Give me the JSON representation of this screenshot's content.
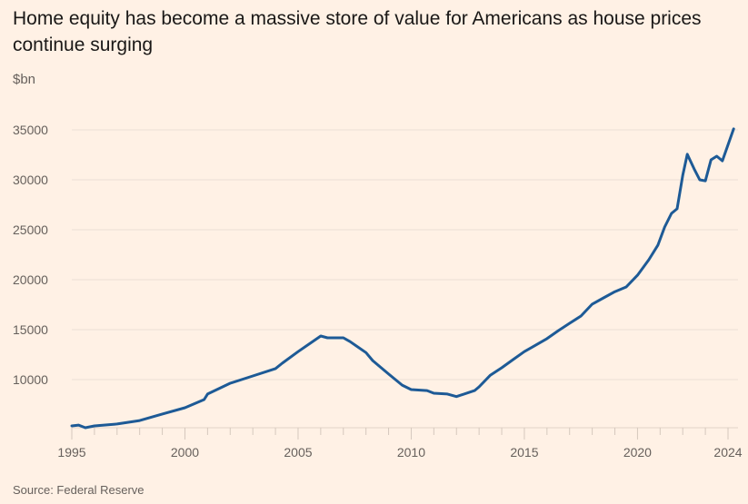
{
  "chart_data": {
    "type": "line",
    "title": "Home equity has become a massive store of value for Americans as house prices continue surging",
    "ylabel": "$bn",
    "xlabel": "",
    "source": "Source: Federal Reserve",
    "xlim": [
      1995,
      2024
    ],
    "ylim": [
      3500,
      36000
    ],
    "x_ticks": [
      1995,
      2000,
      2005,
      2010,
      2015,
      2020,
      2024
    ],
    "y_ticks": [
      10000,
      15000,
      20000,
      25000,
      30000,
      35000
    ],
    "grid": true,
    "line_color": "#1d5a96",
    "series": [
      {
        "name": "Home equity",
        "x": [
          1995.0,
          1995.3,
          1995.6,
          1996,
          1997,
          1998,
          1999,
          2000,
          2000.85,
          2001,
          2002,
          2003,
          2004,
          2004.3,
          2005,
          2006,
          2006.3,
          2007,
          2007.3,
          2008,
          2008.3,
          2009,
          2009.6,
          2010,
          2010.7,
          2011,
          2011.6,
          2012,
          2012.8,
          2013,
          2013.5,
          2014,
          2014.5,
          2015,
          2015.5,
          2016,
          2016.5,
          2017,
          2017.5,
          2018,
          2018.5,
          2019,
          2019.5,
          2020,
          2020.5,
          2020.9,
          2021.2,
          2021.5,
          2021.75,
          2022.0,
          2022.2,
          2022.5,
          2022.75,
          2023.0,
          2023.25,
          2023.5,
          2023.75,
          2024.25
        ],
        "values": [
          5360,
          5450,
          5180,
          5360,
          5550,
          5900,
          6550,
          7180,
          8000,
          8550,
          9640,
          10360,
          11100,
          11640,
          12800,
          14360,
          14180,
          14180,
          13800,
          12700,
          11900,
          10550,
          9450,
          9000,
          8900,
          8640,
          8550,
          8300,
          8900,
          9270,
          10450,
          11180,
          12000,
          12800,
          13450,
          14100,
          14900,
          15640,
          16360,
          17550,
          18180,
          18800,
          19270,
          20450,
          22000,
          23450,
          25270,
          26640,
          27100,
          30450,
          32550,
          31100,
          30000,
          29900,
          32000,
          32360,
          31900,
          35100
        ]
      }
    ]
  }
}
